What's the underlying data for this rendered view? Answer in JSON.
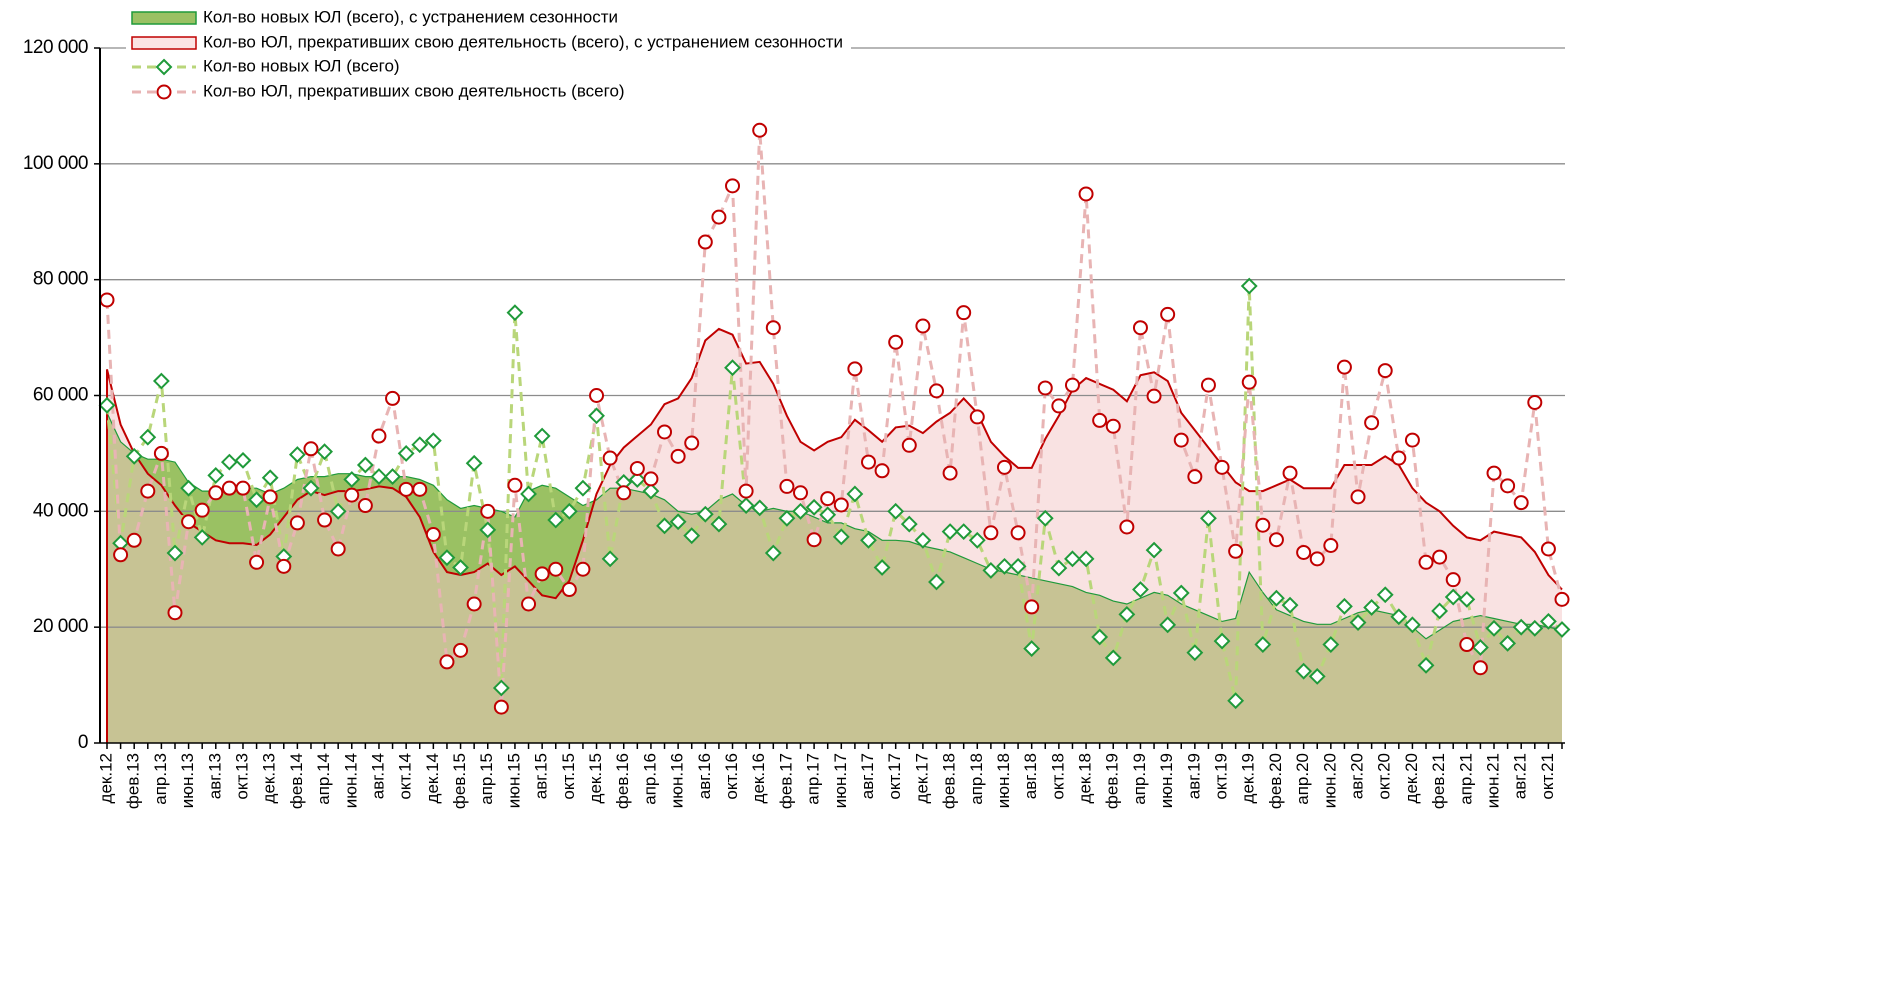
{
  "chart_data": {
    "type": "line",
    "categories": [
      "дек.12",
      null,
      "фев.13",
      null,
      "апр.13",
      null,
      "июн.13",
      null,
      "авг.13",
      null,
      "окт.13",
      null,
      "дек.13",
      null,
      "фев.14",
      null,
      "апр.14",
      null,
      "июн.14",
      null,
      "авг.14",
      null,
      "окт.14",
      null,
      "дек.14",
      null,
      "фев.15",
      null,
      "апр.15",
      null,
      "июн.15",
      null,
      "авг.15",
      null,
      "окт.15",
      null,
      "дек.15",
      null,
      "фев.16",
      null,
      "апр.16",
      null,
      "июн.16",
      null,
      "авг.16",
      null,
      "окт.16",
      null,
      "дек.16",
      null,
      "фев.17",
      null,
      "апр.17",
      null,
      "июн.17",
      null,
      "авг.17",
      null,
      "окт.17",
      null,
      "дек.17",
      null,
      "фев.18",
      null,
      "апр.18",
      null,
      "июн.18",
      null,
      "авг.18",
      null,
      "окт.18",
      null,
      "дек.18",
      null,
      "фев.19",
      null,
      "апр.19",
      null,
      "июн.19",
      null,
      "авг.19",
      null,
      "окт.19",
      null,
      "дек.19",
      null,
      "фев.20",
      null,
      "апр.20",
      null,
      "июн.20",
      null,
      "авг.20",
      null,
      "окт.20",
      null,
      "дек.20",
      null,
      "фев.21",
      null,
      "апр.21",
      null,
      "июн.21",
      null,
      "авг.21",
      null,
      "окт.21",
      null
    ],
    "ylim": [
      0,
      120000
    ],
    "yticks": [
      0,
      {
        "value": 20000,
        "label": "20 000"
      },
      {
        "value": 40000,
        "label": "40 000"
      },
      {
        "value": 60000,
        "label": "60 000"
      },
      {
        "value": 80000,
        "label": "80 000"
      },
      {
        "value": 100000,
        "label": "100 000"
      },
      {
        "value": 120000,
        "label": "120 000"
      }
    ],
    "grid": true,
    "legend": "top-left",
    "series": [
      {
        "name": "Кол-во новых ЮЛ (всего), с устранением сезонности",
        "style": "area",
        "color": "#1f9a3a",
        "fill": "#9ac163",
        "values": [
          57000,
          52000,
          50000,
          49000,
          49000,
          48500,
          45000,
          43500,
          43500,
          44000,
          44000,
          44000,
          43000,
          44000,
          45500,
          46000,
          46000,
          46500,
          46500,
          46000,
          46000,
          46000,
          46000,
          45500,
          44500,
          42000,
          40500,
          41000,
          40500,
          40000,
          39000,
          43500,
          44500,
          44000,
          42500,
          41000,
          42000,
          44000,
          44000,
          43500,
          43000,
          42000,
          40000,
          39500,
          40000,
          42000,
          43000,
          41000,
          40000,
          40500,
          40000,
          40000,
          39000,
          38000,
          38000,
          37000,
          36500,
          35000,
          35000,
          34800,
          34000,
          33500,
          33000,
          32000,
          31000,
          30000,
          29500,
          29000,
          28500,
          28000,
          27500,
          27000,
          26000,
          25500,
          24500,
          24000,
          25000,
          26000,
          25500,
          24000,
          23000,
          22000,
          21000,
          21500,
          29500,
          26000,
          23000,
          22000,
          21000,
          20500,
          20500,
          21500,
          22500,
          23000,
          22500,
          22000,
          20000,
          18000,
          19500,
          21000,
          21500,
          22000,
          21500,
          21000,
          20500,
          20500,
          20000,
          19500
        ]
      },
      {
        "name": "Кол-во ЮЛ, прекративших свою деятельность (всего), с устранением сезонности",
        "style": "area",
        "color": "#c00000",
        "fill": "#f4c6c6",
        "values": [
          64500,
          55000,
          50000,
          46500,
          44500,
          41000,
          38000,
          36500,
          35000,
          34500,
          34500,
          34200,
          36000,
          39000,
          42000,
          43500,
          42800,
          43500,
          43500,
          43800,
          44300,
          44000,
          42500,
          39000,
          33000,
          29500,
          29000,
          29500,
          31000,
          29000,
          30500,
          28000,
          25500,
          25000,
          28000,
          35000,
          43000,
          48000,
          51000,
          53000,
          55000,
          58500,
          59500,
          63000,
          69500,
          71500,
          70500,
          65500,
          65800,
          62000,
          56500,
          52000,
          50500,
          52000,
          52800,
          55800,
          54000,
          52000,
          54500,
          54800,
          53500,
          55500,
          57000,
          59500,
          57000,
          52000,
          49500,
          47500,
          47500,
          52500,
          56500,
          61000,
          63000,
          62000,
          61000,
          59000,
          63500,
          64000,
          62500,
          57000,
          54000,
          51000,
          48000,
          45000,
          43500,
          43500,
          44500,
          45500,
          44000,
          44000,
          44000,
          48000,
          48000,
          48000,
          49500,
          48000,
          44000,
          41500,
          40000,
          37500,
          35500,
          35000,
          36500,
          36000,
          35500,
          33000,
          29000,
          26500
        ]
      },
      {
        "name": "Кол-во новых ЮЛ (всего)",
        "style": "marker",
        "marker": "diamond",
        "color": "#1f9a3a",
        "linecolor": "#b9d67a",
        "values": [
          58300,
          34500,
          49500,
          52800,
          62500,
          32800,
          44000,
          35500,
          46200,
          48500,
          48800,
          42000,
          45800,
          32200,
          49800,
          44000,
          50300,
          40000,
          45500,
          48000,
          46000,
          46000,
          50000,
          51500,
          52200,
          32000,
          30300,
          48300,
          36800,
          9500,
          74300,
          43000,
          53000,
          38500,
          40000,
          44000,
          56500,
          31800,
          45000,
          45500,
          43500,
          37500,
          38200,
          35800,
          39500,
          37800,
          64800,
          41000,
          40600,
          32800,
          38800,
          40000,
          40700,
          39400,
          35600,
          43000,
          35000,
          30300,
          40000,
          37800,
          35000,
          27800,
          36500,
          36500,
          35000,
          29800,
          30500,
          30500,
          16300,
          38800,
          30200,
          31800,
          31800,
          18300,
          14700,
          22200,
          26500,
          33300,
          20400,
          25900,
          15600,
          38800,
          17600,
          7300,
          78900,
          17000,
          25000,
          23800,
          12400,
          11500,
          17000,
          23600,
          20800,
          23400,
          25600,
          21800,
          20400,
          13400,
          22800,
          25200,
          24800,
          16500,
          19800,
          17200,
          20000,
          19800,
          21000,
          19600
        ]
      },
      {
        "name": "Кол-во ЮЛ, прекративших свою деятельность (всего)",
        "style": "marker",
        "marker": "circle",
        "color": "#c00000",
        "linecolor": "#e8b4b4",
        "values": [
          76500,
          32500,
          35000,
          43500,
          50000,
          22500,
          38200,
          40200,
          43200,
          44000,
          44000,
          31200,
          42500,
          30500,
          38000,
          50800,
          38500,
          33500,
          42800,
          41000,
          53000,
          59500,
          43800,
          43800,
          36000,
          14000,
          16000,
          24000,
          40000,
          6200,
          44500,
          24000,
          29200,
          30000,
          26500,
          30000,
          60000,
          49200,
          43200,
          47400,
          45600,
          53700,
          49500,
          51800,
          86500,
          90800,
          96200,
          43500,
          105800,
          71700,
          44300,
          43200,
          35100,
          42200,
          41100,
          64600,
          48500,
          47000,
          69200,
          51400,
          72000,
          60800,
          46600,
          74300,
          56300,
          36300,
          47600,
          36300,
          23500,
          61300,
          58200,
          61800,
          94800,
          55700,
          54700,
          37300,
          71700,
          59900,
          74000,
          52300,
          46000,
          61800,
          47600,
          33100,
          62300,
          37600,
          35100,
          46600,
          32900,
          31800,
          34100,
          64900,
          42500,
          55300,
          64300,
          49200,
          52300,
          31200,
          32100,
          28200,
          17000,
          13000,
          46600,
          44400,
          41500,
          58800,
          33500,
          24800
        ]
      }
    ]
  }
}
